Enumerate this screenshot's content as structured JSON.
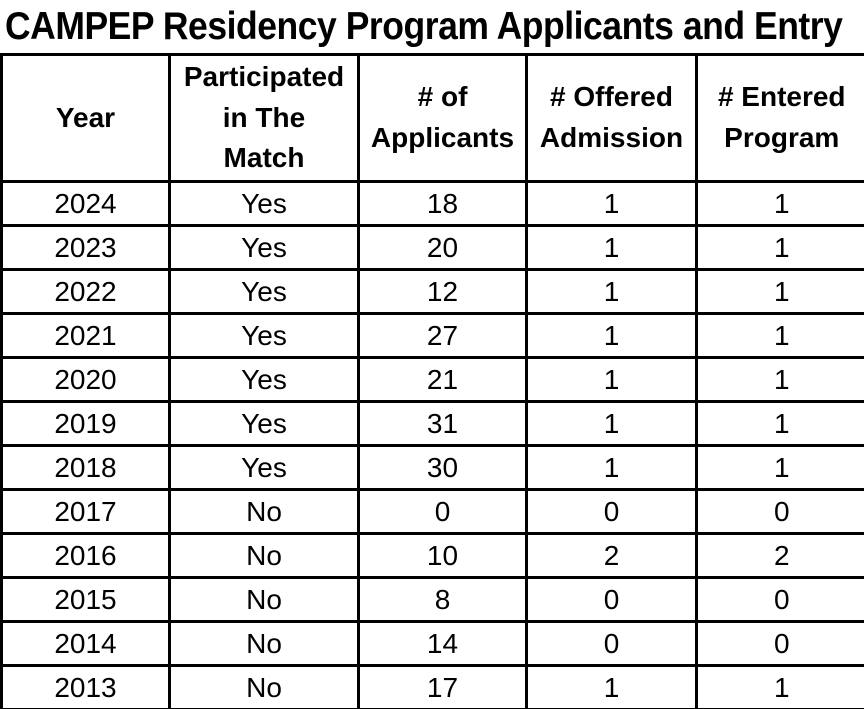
{
  "title": "CAMPEP Residency Program Applicants and Entry",
  "chart_data": {
    "type": "table",
    "title": "CAMPEP Residency Program Applicants and Entry",
    "columns": [
      "Year",
      "Participated\nin The\nMatch",
      "# of\nApplicants",
      "# Offered\nAdmission",
      "# Entered\nProgram"
    ],
    "rows": [
      [
        "2024",
        "Yes",
        "18",
        "1",
        "1"
      ],
      [
        "2023",
        "Yes",
        "20",
        "1",
        "1"
      ],
      [
        "2022",
        "Yes",
        "12",
        "1",
        "1"
      ],
      [
        "2021",
        "Yes",
        "27",
        "1",
        "1"
      ],
      [
        "2020",
        "Yes",
        "21",
        "1",
        "1"
      ],
      [
        "2019",
        "Yes",
        "31",
        "1",
        "1"
      ],
      [
        "2018",
        "Yes",
        "30",
        "1",
        "1"
      ],
      [
        "2017",
        "No",
        "0",
        "0",
        "0"
      ],
      [
        "2016",
        "No",
        "10",
        "2",
        "2"
      ],
      [
        "2015",
        "No",
        "8",
        "0",
        "0"
      ],
      [
        "2014",
        "No",
        "14",
        "0",
        "0"
      ],
      [
        "2013",
        "No",
        "17",
        "1",
        "1"
      ]
    ],
    "text_color": "#000000",
    "border_color": "#000000",
    "background_color": "#ffffff"
  }
}
